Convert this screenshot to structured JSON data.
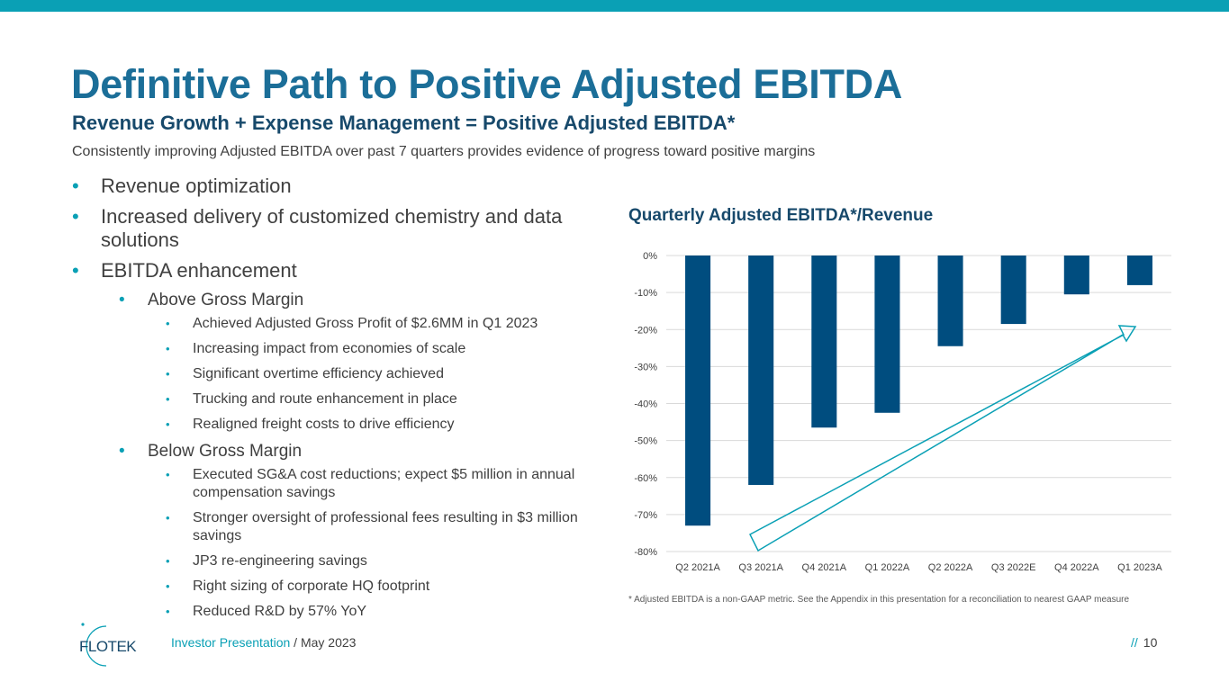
{
  "title": "Definitive Path to Positive Adjusted EBITDA",
  "subtitle": "Revenue Growth + Expense Management = Positive Adjusted EBITDA*",
  "description": "Consistently improving Adjusted EBITDA over past 7 quarters provides evidence of progress toward positive margins",
  "bullets": {
    "revenue_optimization": "Revenue optimization",
    "increased_delivery": "Increased delivery of customized chemistry and data solutions",
    "ebitda_enhancement": "EBITDA enhancement",
    "above_gross_margin": "Above Gross Margin",
    "above_items": [
      "Achieved Adjusted Gross Profit of $2.6MM in Q1 2023",
      "Increasing impact from economies of scale",
      "Significant overtime efficiency achieved",
      "Trucking and route enhancement in place",
      "Realigned freight costs to drive efficiency"
    ],
    "below_gross_margin": "Below Gross Margin",
    "below_items": [
      "Executed SG&A cost reductions; expect $5 million in annual compensation savings",
      "Stronger oversight of professional fees resulting in $3 million savings",
      "JP3 re-engineering savings",
      "Right sizing of corporate HQ footprint",
      "Reduced R&D by 57% YoY"
    ]
  },
  "bullet_glyph": "•",
  "chart_data": {
    "type": "bar",
    "title": "Quarterly Adjusted EBITDA*/Revenue",
    "categories": [
      "Q2 2021A",
      "Q3 2021A",
      "Q4 2021A",
      "Q1 2022A",
      "Q2 2022A",
      "Q3 2022E",
      "Q4 2022A",
      "Q1 2023A"
    ],
    "values": [
      -73,
      -62,
      -46.5,
      -42.5,
      -24.5,
      -18.5,
      -10.5,
      -8
    ],
    "unit": "%",
    "ylim": [
      -80,
      0
    ],
    "yticks": [
      0,
      -10,
      -20,
      -30,
      -40,
      -50,
      -60,
      -70,
      -80
    ],
    "ytick_labels": [
      "0%",
      "-10%",
      "-20%",
      "-30%",
      "-40%",
      "-50%",
      "-60%",
      "-70%",
      "-80%"
    ],
    "grid": true,
    "bar_color": "#004d7f",
    "annotation": "upward trend arrow"
  },
  "footnote": "* Adjusted EBITDA is a non-GAAP metric. See the Appendix in this presentation for a reconciliation to nearest GAAP measure",
  "footer": {
    "logo_text": "FLOTEK",
    "presentation_label": "Investor Presentation",
    "date": " / May 2023",
    "slash": "//",
    "page_number": "10"
  },
  "colors": {
    "accent": "#0aa0b5",
    "title": "#1b6e98",
    "subtitle": "#17496b",
    "bar": "#004d7f"
  }
}
